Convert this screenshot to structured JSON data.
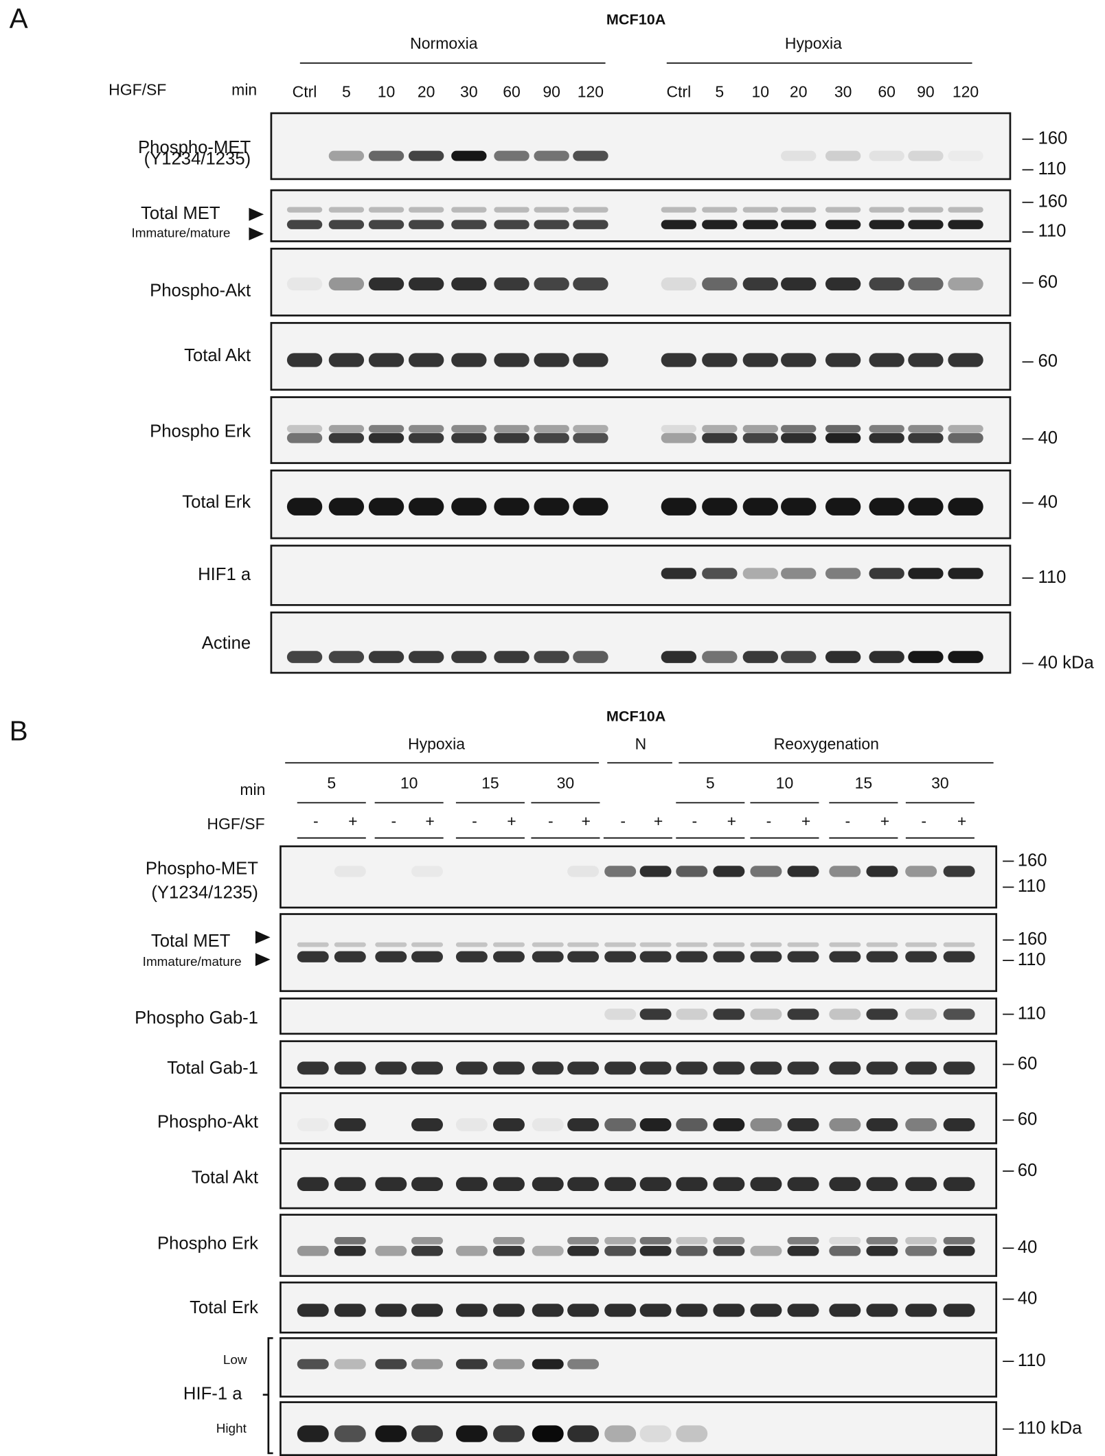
{
  "panels": [
    {
      "label": "A",
      "title": "MCF10A",
      "row_labels": [
        "HGF/SF",
        "min"
      ],
      "groups": [
        {
          "name": "Normoxia",
          "lanes": [
            "Ctrl",
            "5",
            "10",
            "20",
            "30",
            "60",
            "90",
            "120"
          ]
        },
        {
          "name": "Hypoxia",
          "lanes": [
            "Ctrl",
            "5",
            "10",
            "20",
            "30",
            "60",
            "90",
            "120"
          ]
        }
      ],
      "blots": [
        {
          "label": [
            "Phospho-MET",
            "(Y1234/1235)"
          ],
          "markers": [
            "160",
            "110"
          ]
        },
        {
          "label": [
            "Total MET",
            "Immature/mature"
          ],
          "markers": [
            "160",
            "110"
          ]
        },
        {
          "label": [
            "Phospho-Akt"
          ],
          "markers": [
            "60"
          ]
        },
        {
          "label": [
            "Total Akt"
          ],
          "markers": [
            "60"
          ]
        },
        {
          "label": [
            "Phospho Erk"
          ],
          "markers": [
            "40"
          ]
        },
        {
          "label": [
            "Total Erk"
          ],
          "markers": [
            "40"
          ]
        },
        {
          "label": [
            "HIF1 a"
          ],
          "markers": [
            "110"
          ]
        },
        {
          "label": [
            "Actine"
          ],
          "markers": [
            "40 kDa"
          ]
        }
      ]
    },
    {
      "label": "B",
      "title": "MCF10A",
      "time_label": "min",
      "treatment_label": "HGF/SF",
      "treatment": [
        "-",
        "+"
      ],
      "groups": [
        {
          "name": "Hypoxia",
          "times": [
            "5",
            "10",
            "15",
            "30"
          ]
        },
        {
          "name": "N",
          "times": []
        },
        {
          "name": "Reoxygenation",
          "times": [
            "5",
            "10",
            "15",
            "30"
          ]
        }
      ],
      "bracket_label": "HIF-1 a",
      "blots": [
        {
          "label": [
            "Phospho-MET",
            "(Y1234/1235)"
          ],
          "markers": [
            "160",
            "110"
          ]
        },
        {
          "label": [
            "Total MET",
            "Immature/mature"
          ],
          "markers": [
            "160",
            "110"
          ]
        },
        {
          "label": [
            "Phospho Gab-1"
          ],
          "markers": [
            "110"
          ]
        },
        {
          "label": [
            "Total Gab-1"
          ],
          "markers": [
            "60"
          ]
        },
        {
          "label": [
            "Phospho-Akt"
          ],
          "markers": [
            "60"
          ]
        },
        {
          "label": [
            "Total Akt"
          ],
          "markers": [
            "60"
          ]
        },
        {
          "label": [
            "Phospho Erk"
          ],
          "markers": [
            "40"
          ]
        },
        {
          "label": [
            "Total Erk"
          ],
          "markers": [
            "40"
          ]
        },
        {
          "label": [
            "Low"
          ],
          "markers": [
            "110"
          ]
        },
        {
          "label": [
            "Hight"
          ],
          "markers": [
            "110 kDa"
          ]
        }
      ]
    }
  ]
}
